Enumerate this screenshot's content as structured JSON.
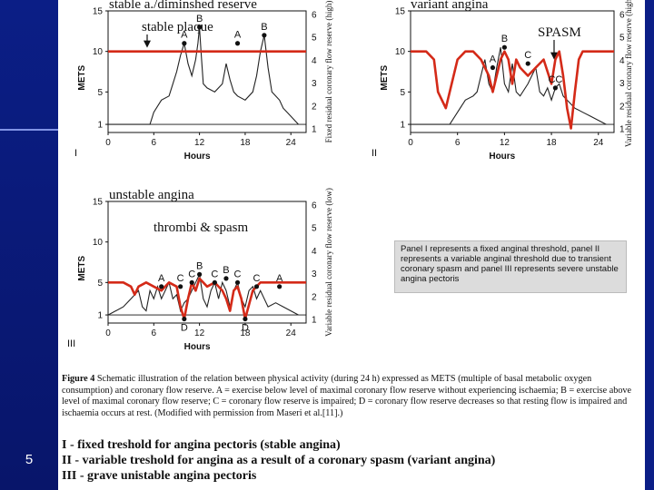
{
  "slide": {
    "number": "5"
  },
  "colors": {
    "threshold": "#d42a18",
    "trace": "#222222"
  },
  "chart_data": [
    {
      "type": "line",
      "panel": "I",
      "title": "stable a./diminshed reserve",
      "annotation": "stable plaque",
      "xlabel": "Hours",
      "ylabel": "METS",
      "ylabel_right": "Fixed residual coronary flow reserve (high)",
      "xlim": [
        0,
        26
      ],
      "ylim": [
        0,
        15
      ],
      "x_ticks": [
        0,
        6,
        12,
        18,
        24
      ],
      "y_ticks": [
        1,
        5,
        10,
        15
      ],
      "y_right_ticks": [
        1,
        2,
        3,
        4,
        5,
        6
      ],
      "threshold": {
        "x": [
          0,
          26
        ],
        "y": [
          10,
          10
        ]
      },
      "activity": {
        "x": [
          0,
          5.5,
          6,
          7,
          8,
          8.5,
          9,
          9.5,
          10,
          10.5,
          11,
          11.5,
          11.8,
          12,
          12.2,
          12.5,
          13,
          14,
          15,
          15.5,
          16,
          16.5,
          17,
          18,
          19,
          19.5,
          20,
          20.5,
          21,
          21.5,
          22,
          22.5,
          23,
          24,
          25
        ],
        "y": [
          1,
          1,
          2.5,
          4,
          4.5,
          6,
          7.5,
          9.5,
          11,
          8.5,
          7,
          9,
          11,
          13,
          10,
          6,
          5.5,
          5,
          6,
          8.5,
          6.5,
          5,
          4.5,
          4,
          5,
          7,
          10,
          12,
          8,
          5,
          4.5,
          4,
          3,
          2,
          1
        ]
      },
      "points": [
        {
          "label": "A",
          "x": 10,
          "y": 11
        },
        {
          "label": "B",
          "x": 12,
          "y": 13
        },
        {
          "label": "A",
          "x": 17,
          "y": 11
        },
        {
          "label": "B",
          "x": 20.5,
          "y": 12
        }
      ]
    },
    {
      "type": "line",
      "panel": "II",
      "title": "variant angina",
      "annotation": "SPASM",
      "xlabel": "Hours",
      "ylabel": "METS",
      "ylabel_right": "Variable residual coronary flow reserve (high)",
      "xlim": [
        0,
        26
      ],
      "ylim": [
        0,
        15
      ],
      "x_ticks": [
        0,
        6,
        12,
        18,
        24
      ],
      "y_ticks": [
        1,
        5,
        10,
        15
      ],
      "y_right_ticks": [
        1,
        2,
        3,
        4,
        5,
        6
      ],
      "threshold": {
        "x": [
          0,
          2,
          3,
          3.5,
          4.5,
          5,
          6,
          7,
          8,
          9,
          10,
          10.5,
          11,
          11.5,
          12,
          12.5,
          13,
          13.5,
          14,
          15,
          16,
          17,
          18,
          18.5,
          19,
          19.5,
          20,
          20.5,
          21,
          21.5,
          22,
          23,
          24,
          26
        ],
        "y": [
          10,
          10,
          9,
          5,
          3,
          5,
          9,
          10,
          10,
          9,
          7,
          5,
          7,
          9,
          10,
          9,
          6,
          9,
          8,
          7,
          8,
          9,
          6,
          9,
          10,
          7,
          3,
          0.5,
          5,
          9,
          10,
          10,
          10,
          10
        ]
      },
      "activity": {
        "x": [
          0,
          5,
          6,
          7,
          8,
          8.5,
          9,
          9.5,
          10,
          10.5,
          11,
          11.5,
          12,
          12.5,
          13,
          13.5,
          14,
          15,
          16,
          16.5,
          17,
          17.5,
          18,
          18.5,
          19,
          19.5,
          20,
          21,
          22,
          23,
          24,
          25
        ],
        "y": [
          1,
          1,
          2.5,
          4,
          4.5,
          5,
          7,
          9,
          6,
          5,
          8,
          10.5,
          6,
          5,
          8.5,
          5,
          4.5,
          6,
          8,
          5,
          4.5,
          5.5,
          4,
          5.5,
          6,
          4.5,
          4,
          3,
          2.5,
          2,
          1.5,
          1
        ]
      },
      "points": [
        {
          "label": "A",
          "x": 10.5,
          "y": 8
        },
        {
          "label": "B",
          "x": 12,
          "y": 10.5
        },
        {
          "label": "C",
          "x": 15,
          "y": 8.5
        },
        {
          "label": "CC",
          "x": 18.5,
          "y": 5.5
        }
      ]
    },
    {
      "type": "line",
      "panel": "III",
      "title": "unstable angina",
      "annotation": "thrombi & spasm",
      "xlabel": "Hours",
      "ylabel": "METS",
      "ylabel_right": "Variable residual coronary flow reserve (low)",
      "xlim": [
        0,
        26
      ],
      "ylim": [
        0,
        15
      ],
      "x_ticks": [
        0,
        6,
        12,
        18,
        24
      ],
      "y_ticks": [
        1,
        5,
        10,
        15
      ],
      "y_right_ticks": [
        1,
        2,
        3,
        4,
        5,
        6
      ],
      "threshold": {
        "x": [
          0,
          2,
          3,
          3.5,
          4,
          5,
          6,
          7,
          8,
          9,
          9.5,
          10,
          10.5,
          11,
          11.5,
          12,
          13,
          14,
          15,
          15.5,
          16,
          16.5,
          17,
          17.5,
          18,
          19,
          20,
          21,
          22,
          23,
          24,
          26
        ],
        "y": [
          5,
          5,
          4.5,
          3.5,
          4.5,
          5,
          4.5,
          4,
          5,
          4.5,
          2,
          0.5,
          3,
          5,
          4,
          5.5,
          4.5,
          5,
          4,
          3,
          1.5,
          4,
          4.5,
          3,
          0.5,
          4,
          5,
          5,
          5,
          5,
          5,
          5
        ]
      },
      "activity": {
        "x": [
          0,
          2,
          3,
          4,
          4.5,
          5,
          5.5,
          6,
          6.5,
          7,
          7.5,
          8,
          8.5,
          9,
          9.5,
          10,
          10.5,
          11,
          11.5,
          12,
          12.5,
          13,
          13.5,
          14,
          14.5,
          15,
          15.5,
          16,
          16.5,
          17,
          17.5,
          18,
          18.5,
          19,
          19.5,
          20,
          20.5,
          21,
          22,
          23,
          24,
          25
        ],
        "y": [
          1,
          2,
          3,
          4,
          2,
          1.5,
          4,
          3,
          4.5,
          3,
          4,
          5,
          3,
          3.5,
          1.5,
          2.5,
          3,
          4,
          5,
          6,
          3,
          2,
          4,
          5,
          3,
          5,
          4,
          2,
          4,
          5,
          3,
          2,
          4,
          4.5,
          3,
          4,
          3,
          2,
          2.5,
          2,
          1.5,
          1
        ]
      },
      "points": [
        {
          "label": "A",
          "x": 7,
          "y": 4.5
        },
        {
          "label": "C",
          "x": 9.5,
          "y": 4.5
        },
        {
          "label": "C",
          "x": 11,
          "y": 5
        },
        {
          "label": "B",
          "x": 12,
          "y": 6
        },
        {
          "label": "C",
          "x": 14,
          "y": 5
        },
        {
          "label": "B",
          "x": 15.5,
          "y": 5.5
        },
        {
          "label": "C",
          "x": 17,
          "y": 5
        },
        {
          "label": "C",
          "x": 19.5,
          "y": 4.5
        },
        {
          "label": "A",
          "x": 22.5,
          "y": 4.5
        },
        {
          "label": "D",
          "x": 10,
          "y": 0.5
        },
        {
          "label": "D",
          "x": 18,
          "y": 0.5
        }
      ]
    }
  ],
  "legend_box": "Panel I represents a fixed anginal threshold, panel II represents a variable anginal threshold due to transient coronary spasm and panel III represents severe unstable angina pectoris",
  "caption": {
    "label": "Figure 4",
    "text": "Schematic illustration of the relation between physical activity (during 24 h) expressed as METS (multiple of basal metabolic oxygen consumption) and coronary flow reserve. A = exercise below level of maximal coronary flow reserve without experiencing ischaemia; B = exercise above level of maximal coronary flow reserve; C = coronary flow reserve is impaired; D = coronary flow reserve decreases so that resting flow is impaired and ischaemia occurs at rest. (Modified with permission from Maseri et al.[11].)"
  },
  "summary": [
    "I - fixed treshold for angina pectoris (stable angina)",
    "II - variable treshold for angina as a result of a coronary spasm (variant angina)",
    "III - grave unistable angina pectoris"
  ]
}
